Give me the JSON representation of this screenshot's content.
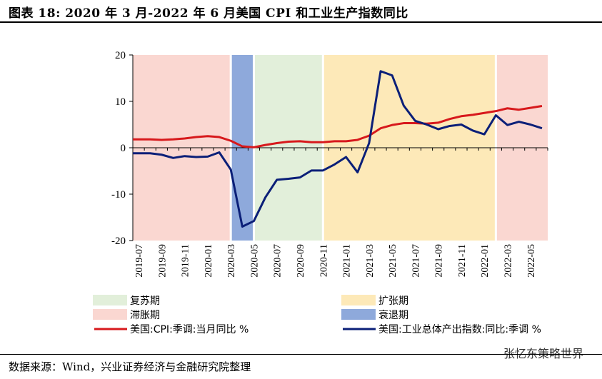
{
  "header": {
    "title": "图表 18: 2020 年 3 月-2022 年 6 月美国 CPI 和工业生产指数同比"
  },
  "footer": {
    "source": "数据来源：Wind，兴业证券经济与金融研究院整理",
    "watermark": "张忆东策略世界"
  },
  "chart_data": {
    "type": "line",
    "x": [
      "2019-07",
      "2019-08",
      "2019-09",
      "2019-10",
      "2019-11",
      "2019-12",
      "2020-01",
      "2020-02",
      "2020-03",
      "2020-04",
      "2020-05",
      "2020-06",
      "2020-07",
      "2020-08",
      "2020-09",
      "2020-10",
      "2020-11",
      "2020-12",
      "2021-01",
      "2021-02",
      "2021-03",
      "2021-04",
      "2021-05",
      "2021-06",
      "2021-07",
      "2021-08",
      "2021-09",
      "2021-10",
      "2021-11",
      "2021-12",
      "2022-01",
      "2022-02",
      "2022-03",
      "2022-04",
      "2022-05",
      "2022-06"
    ],
    "tick_labels": [
      "2019-07",
      "2019-09",
      "2019-11",
      "2020-01",
      "2020-03",
      "2020-05",
      "2020-07",
      "2020-09",
      "2020-11",
      "2021-01",
      "2021-03",
      "2021-05",
      "2021-07",
      "2021-09",
      "2021-11",
      "2022-01",
      "2022-03",
      "2022-05"
    ],
    "ylim": [
      -20,
      20
    ],
    "yticks": [
      -20,
      -10,
      0,
      10,
      20
    ],
    "series": [
      {
        "name": "美国:CPI:季调:当月同比 %",
        "color": "#d7191c",
        "values": [
          1.8,
          1.8,
          1.7,
          1.8,
          2.0,
          2.3,
          2.5,
          2.3,
          1.5,
          0.3,
          0.1,
          0.6,
          1.0,
          1.3,
          1.4,
          1.2,
          1.2,
          1.4,
          1.4,
          1.7,
          2.6,
          4.2,
          4.9,
          5.3,
          5.3,
          5.2,
          5.4,
          6.2,
          6.8,
          7.1,
          7.5,
          7.9,
          8.5,
          8.2,
          8.6,
          9.0
        ]
      },
      {
        "name": "美国:工业总体产出指数:同比:季调 %",
        "color": "#0b1f78",
        "values": [
          -1.2,
          -1.2,
          -1.5,
          -2.2,
          -1.8,
          -2.0,
          -1.9,
          -1.0,
          -4.7,
          -17.0,
          -15.8,
          -10.7,
          -6.9,
          -6.7,
          -6.4,
          -4.9,
          -4.9,
          -3.6,
          -2.0,
          -5.3,
          1.0,
          16.5,
          15.6,
          9.1,
          5.8,
          5.0,
          4.0,
          4.7,
          5.0,
          3.7,
          2.9,
          7.0,
          4.9,
          5.6,
          5.0,
          4.2
        ]
      }
    ],
    "phases": [
      {
        "name": "滞胀期",
        "from": "2019-07",
        "to": "2020-03",
        "color": "#fad7d1"
      },
      {
        "name": "衰退期",
        "from": "2020-03",
        "to": "2020-05",
        "color": "#8ea9db"
      },
      {
        "name": "复苏期",
        "from": "2020-05",
        "to": "2020-11",
        "color": "#e2efda"
      },
      {
        "name": "扩张期",
        "from": "2020-11",
        "to": "2022-02",
        "color": "#fde9b8"
      },
      {
        "name": "滞胀期",
        "from": "2022-02",
        "to": "2022-06",
        "color": "#fad7d1"
      }
    ],
    "legend": [
      {
        "label": "复苏期",
        "kind": "box",
        "color": "#e2efda"
      },
      {
        "label": "扩张期",
        "kind": "box",
        "color": "#fde9b8"
      },
      {
        "label": "滞胀期",
        "kind": "box",
        "color": "#fad7d1"
      },
      {
        "label": "衰退期",
        "kind": "box",
        "color": "#8ea9db"
      },
      {
        "label": "美国:CPI:季调:当月同比 %",
        "kind": "line",
        "color": "#d7191c"
      },
      {
        "label": "美国:工业总体产出指数:同比:季调 %",
        "kind": "line",
        "color": "#0b1f78"
      }
    ],
    "legend_position": "bottom",
    "grid": false
  }
}
